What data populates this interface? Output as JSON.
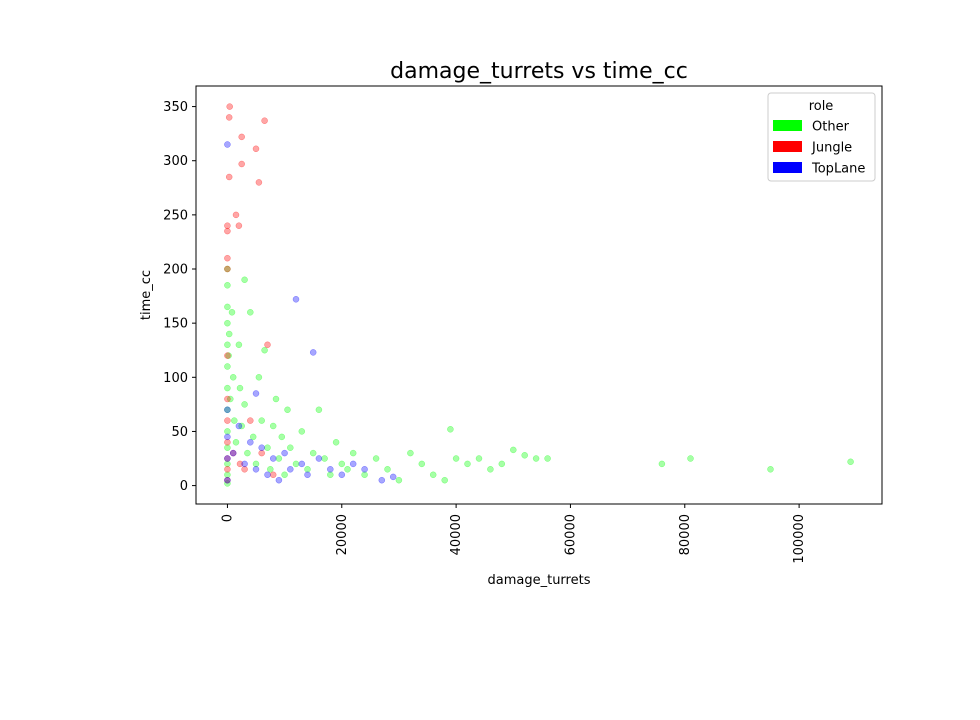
{
  "chart_data": {
    "type": "scatter",
    "title": "damage_turrets vs time_cc",
    "xlabel": "damage_turrets",
    "ylabel": "time_cc",
    "xlim": [
      -5500,
      114500
    ],
    "ylim": [
      -17,
      369
    ],
    "xticks": [
      0,
      20000,
      40000,
      60000,
      80000,
      100000
    ],
    "yticks": [
      0,
      50,
      100,
      150,
      200,
      250,
      300,
      350
    ],
    "grid": false,
    "legend": {
      "title": "role",
      "placement": "top-right",
      "entries": [
        {
          "name": "Other",
          "color": "#00ff00"
        },
        {
          "name": "Jungle",
          "color": "#ff0000"
        },
        {
          "name": "TopLane",
          "color": "#0000ff"
        }
      ]
    },
    "series": [
      {
        "name": "Other",
        "color": "#00ff00",
        "points": [
          [
            0,
            2
          ],
          [
            0,
            10
          ],
          [
            0,
            20
          ],
          [
            0,
            35
          ],
          [
            0,
            50
          ],
          [
            0,
            70
          ],
          [
            0,
            90
          ],
          [
            0,
            110
          ],
          [
            0,
            130
          ],
          [
            0,
            150
          ],
          [
            0,
            165
          ],
          [
            0,
            185
          ],
          [
            0,
            200
          ],
          [
            200,
            120
          ],
          [
            300,
            140
          ],
          [
            500,
            80
          ],
          [
            800,
            160
          ],
          [
            1000,
            100
          ],
          [
            1200,
            60
          ],
          [
            1500,
            40
          ],
          [
            2000,
            130
          ],
          [
            2200,
            90
          ],
          [
            2500,
            55
          ],
          [
            3000,
            75
          ],
          [
            3000,
            190
          ],
          [
            3500,
            30
          ],
          [
            4000,
            160
          ],
          [
            4500,
            45
          ],
          [
            5000,
            20
          ],
          [
            5500,
            100
          ],
          [
            6000,
            60
          ],
          [
            6500,
            125
          ],
          [
            7000,
            35
          ],
          [
            7500,
            15
          ],
          [
            8000,
            55
          ],
          [
            8500,
            80
          ],
          [
            9000,
            25
          ],
          [
            9500,
            45
          ],
          [
            10000,
            10
          ],
          [
            10500,
            70
          ],
          [
            11000,
            35
          ],
          [
            12000,
            20
          ],
          [
            13000,
            50
          ],
          [
            14000,
            15
          ],
          [
            15000,
            30
          ],
          [
            16000,
            70
          ],
          [
            17000,
            25
          ],
          [
            18000,
            10
          ],
          [
            19000,
            40
          ],
          [
            20000,
            20
          ],
          [
            21000,
            15
          ],
          [
            22000,
            30
          ],
          [
            24000,
            10
          ],
          [
            26000,
            25
          ],
          [
            28000,
            15
          ],
          [
            30000,
            5
          ],
          [
            32000,
            30
          ],
          [
            34000,
            20
          ],
          [
            36000,
            10
          ],
          [
            38000,
            5
          ],
          [
            39000,
            52
          ],
          [
            40000,
            25
          ],
          [
            42000,
            20
          ],
          [
            44000,
            25
          ],
          [
            46000,
            15
          ],
          [
            48000,
            20
          ],
          [
            50000,
            33
          ],
          [
            52000,
            28
          ],
          [
            54000,
            25
          ],
          [
            56000,
            25
          ],
          [
            76000,
            20
          ],
          [
            81000,
            25
          ],
          [
            95000,
            15
          ],
          [
            109000,
            22
          ]
        ]
      },
      {
        "name": "Jungle",
        "color": "#ff0000",
        "points": [
          [
            0,
            5
          ],
          [
            0,
            15
          ],
          [
            0,
            25
          ],
          [
            0,
            40
          ],
          [
            0,
            60
          ],
          [
            0,
            80
          ],
          [
            0,
            120
          ],
          [
            0,
            200
          ],
          [
            0,
            210
          ],
          [
            0,
            235
          ],
          [
            0,
            240
          ],
          [
            300,
            285
          ],
          [
            300,
            340
          ],
          [
            400,
            350
          ],
          [
            1000,
            30
          ],
          [
            1500,
            250
          ],
          [
            2000,
            240
          ],
          [
            2200,
            20
          ],
          [
            2500,
            322
          ],
          [
            2500,
            297
          ],
          [
            3000,
            15
          ],
          [
            4000,
            60
          ],
          [
            5000,
            311
          ],
          [
            5500,
            280
          ],
          [
            6000,
            30
          ],
          [
            6500,
            337
          ],
          [
            7000,
            130
          ],
          [
            8000,
            10
          ]
        ]
      },
      {
        "name": "TopLane",
        "color": "#0000ff",
        "points": [
          [
            0,
            5
          ],
          [
            0,
            25
          ],
          [
            0,
            45
          ],
          [
            0,
            70
          ],
          [
            0,
            315
          ],
          [
            1000,
            30
          ],
          [
            2000,
            55
          ],
          [
            3000,
            20
          ],
          [
            4000,
            40
          ],
          [
            5000,
            15
          ],
          [
            5000,
            85
          ],
          [
            6000,
            35
          ],
          [
            7000,
            10
          ],
          [
            8000,
            25
          ],
          [
            9000,
            5
          ],
          [
            10000,
            30
          ],
          [
            11000,
            15
          ],
          [
            12000,
            172
          ],
          [
            13000,
            20
          ],
          [
            14000,
            10
          ],
          [
            15000,
            123
          ],
          [
            16000,
            25
          ],
          [
            18000,
            15
          ],
          [
            20000,
            10
          ],
          [
            22000,
            20
          ],
          [
            24000,
            15
          ],
          [
            27000,
            5
          ],
          [
            29000,
            8
          ]
        ]
      }
    ]
  }
}
